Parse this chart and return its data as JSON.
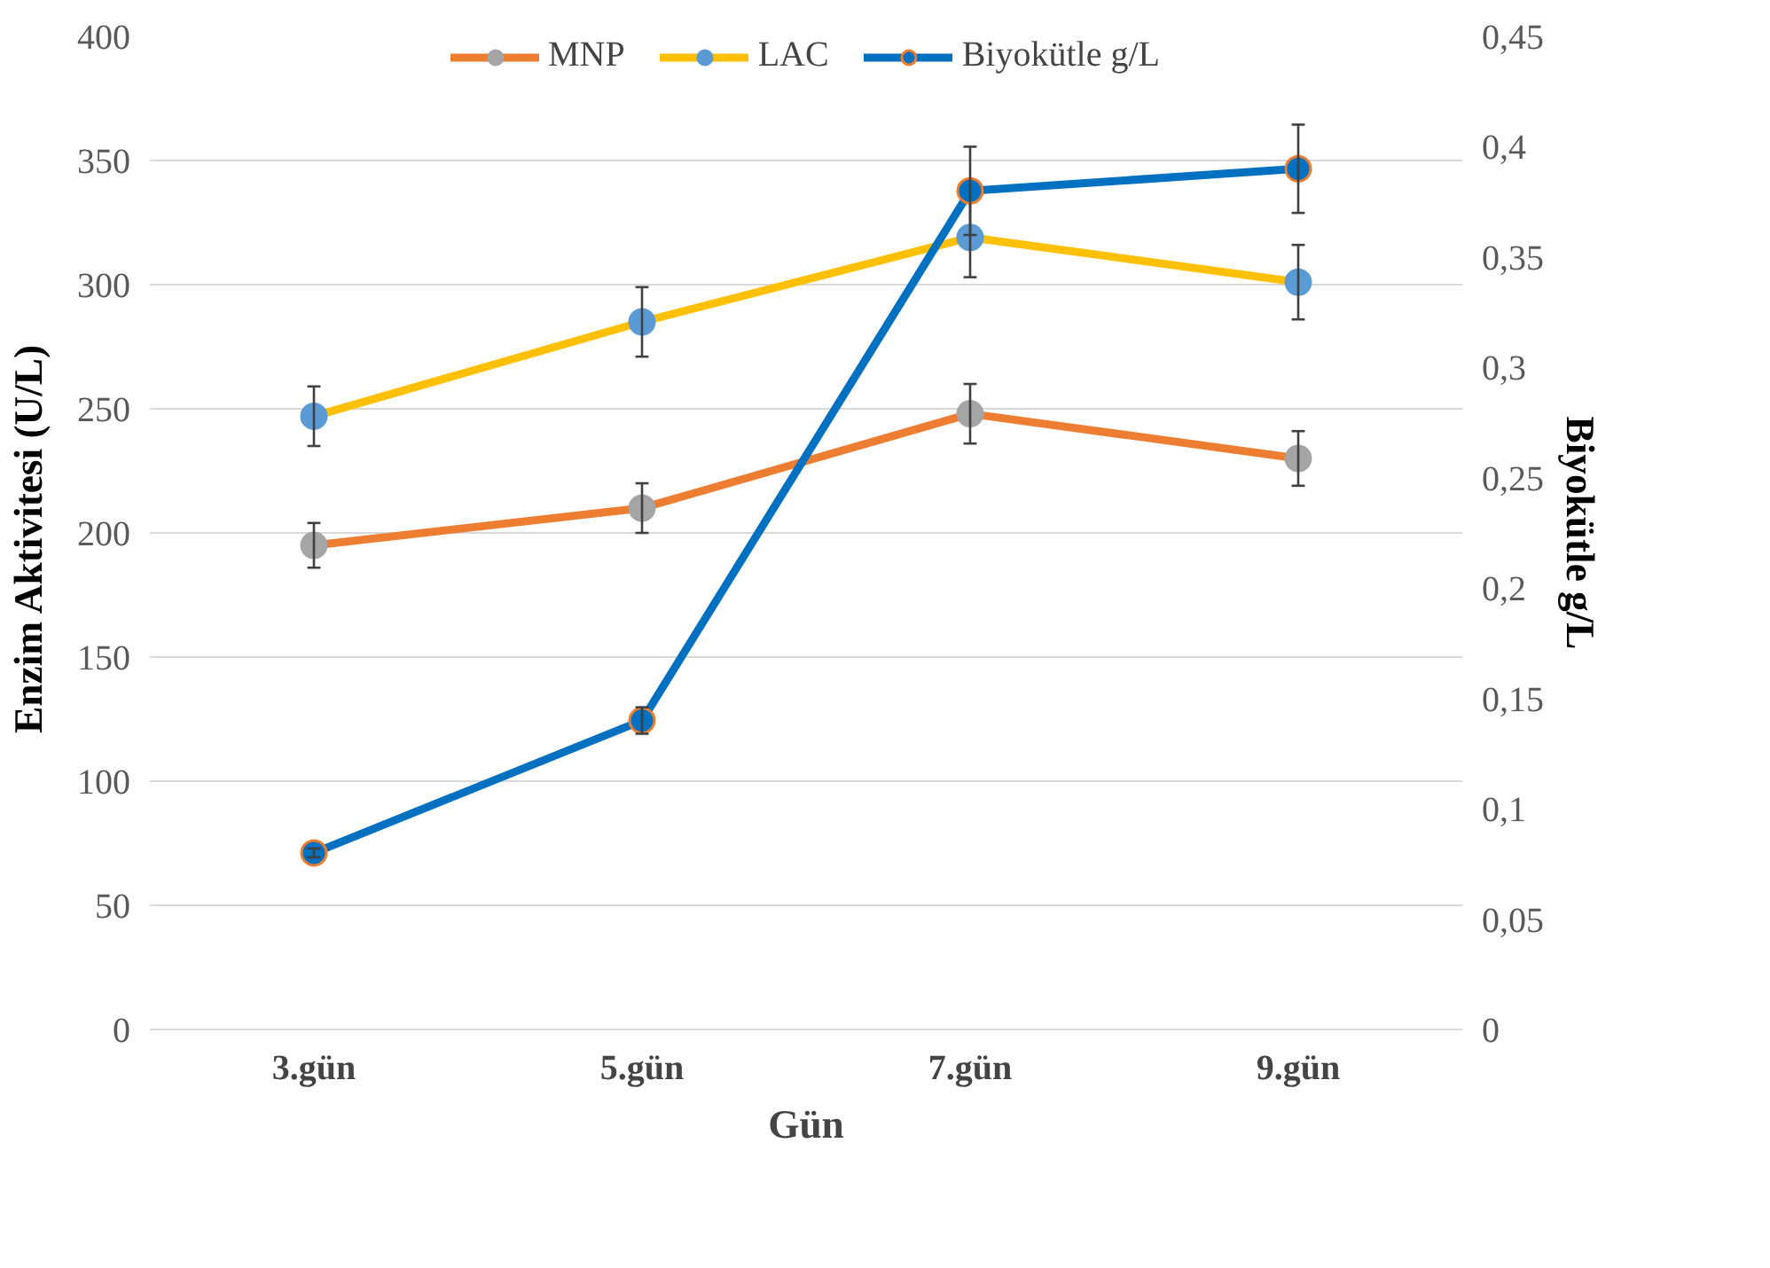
{
  "chart_data": {
    "type": "line",
    "xlabel": "Gün",
    "ylabel": "Enzim Aktivitesi  (U/L)",
    "y2label": "Biyokütle g/L",
    "categories": [
      "3.gün",
      "5.gün",
      "7.gün",
      "9.gün"
    ],
    "series": [
      {
        "name": "MNP",
        "color": "#ed7d31",
        "values": [
          195,
          210,
          248,
          230
        ],
        "errors": [
          9,
          10,
          12,
          11
        ]
      },
      {
        "name": "LAC",
        "color": "#ffc000",
        "values": [
          247,
          285,
          319,
          301
        ],
        "errors": [
          12,
          14,
          16,
          15
        ]
      },
      {
        "name": "Biyokütle g/L",
        "color": "#0070c0",
        "axis": "y2",
        "values": [
          0.08,
          0.14,
          0.38,
          0.39
        ],
        "errors": [
          0.002,
          0.006,
          0.02,
          0.02
        ]
      }
    ],
    "ylim": [
      0,
      400
    ],
    "yticks": [
      0,
      50,
      100,
      150,
      200,
      250,
      300,
      350,
      400
    ],
    "y2lim": [
      0,
      0.45
    ],
    "y2ticks": [
      0,
      {
        "value": 0.05,
        "label": "0,05"
      },
      {
        "value": 0.1,
        "label": "0,1"
      },
      {
        "value": 0.15,
        "label": "0,15"
      },
      {
        "value": 0.2,
        "label": "0,2"
      },
      {
        "value": 0.25,
        "label": "0,25"
      },
      {
        "value": 0.3,
        "label": "0,3"
      },
      {
        "value": 0.35,
        "label": "0,35"
      },
      {
        "value": 0.4,
        "label": "0,4"
      },
      {
        "value": 0.45,
        "label": "0,45"
      }
    ],
    "grid": "y",
    "legend": "top",
    "marker": "circle",
    "line_style": "solid"
  }
}
